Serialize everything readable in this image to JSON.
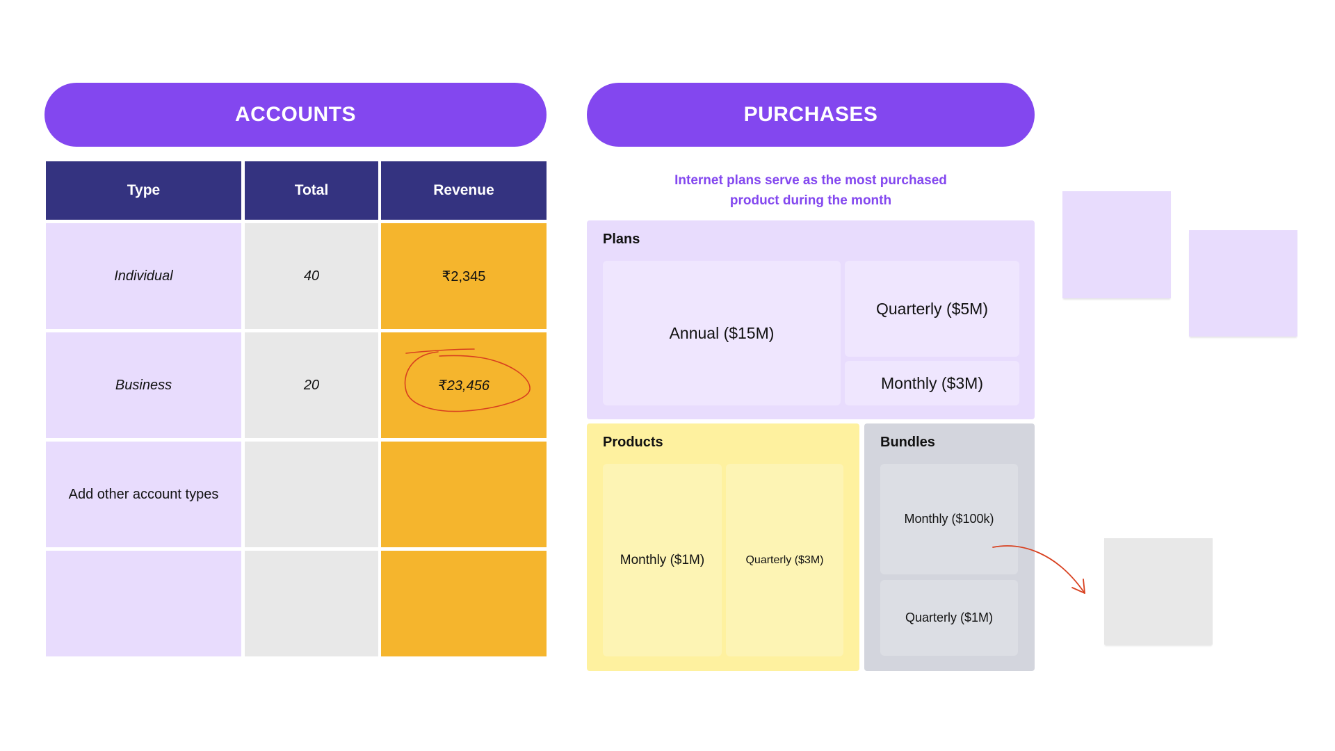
{
  "accounts": {
    "title": "ACCOUNTS",
    "headers": [
      "Type",
      "Total",
      "Revenue"
    ],
    "rows": [
      {
        "type": "Individual",
        "total": "40",
        "revenue": "₹2,345"
      },
      {
        "type": "Business",
        "total": "20",
        "revenue": "₹23,456"
      },
      {
        "type": "Add other account types",
        "total": "",
        "revenue": ""
      },
      {
        "type": "",
        "total": "",
        "revenue": ""
      }
    ]
  },
  "purchases": {
    "title": "PURCHASES",
    "caption_line1": "Internet plans serve as the most purchased",
    "caption_line2": "product during the month",
    "plans": {
      "title": "Plans",
      "annual": "Annual ($15M)",
      "quarterly": "Quarterly ($5M)",
      "monthly": "Monthly ($3M)"
    },
    "products": {
      "title": "Products",
      "monthly": "Monthly ($1M)",
      "quarterly": "Quarterly ($3M)"
    },
    "bundles": {
      "title": "Bundles",
      "monthly": "Monthly ($100k)",
      "quarterly": "Quarterly ($1M)"
    }
  },
  "colors": {
    "accent_purple": "#8347ef",
    "header_navy": "#343380",
    "type_column": "#e8dcfd",
    "total_column": "#e8e8e8",
    "revenue_column": "#f5b52d",
    "annotation_red": "#d8401f"
  }
}
